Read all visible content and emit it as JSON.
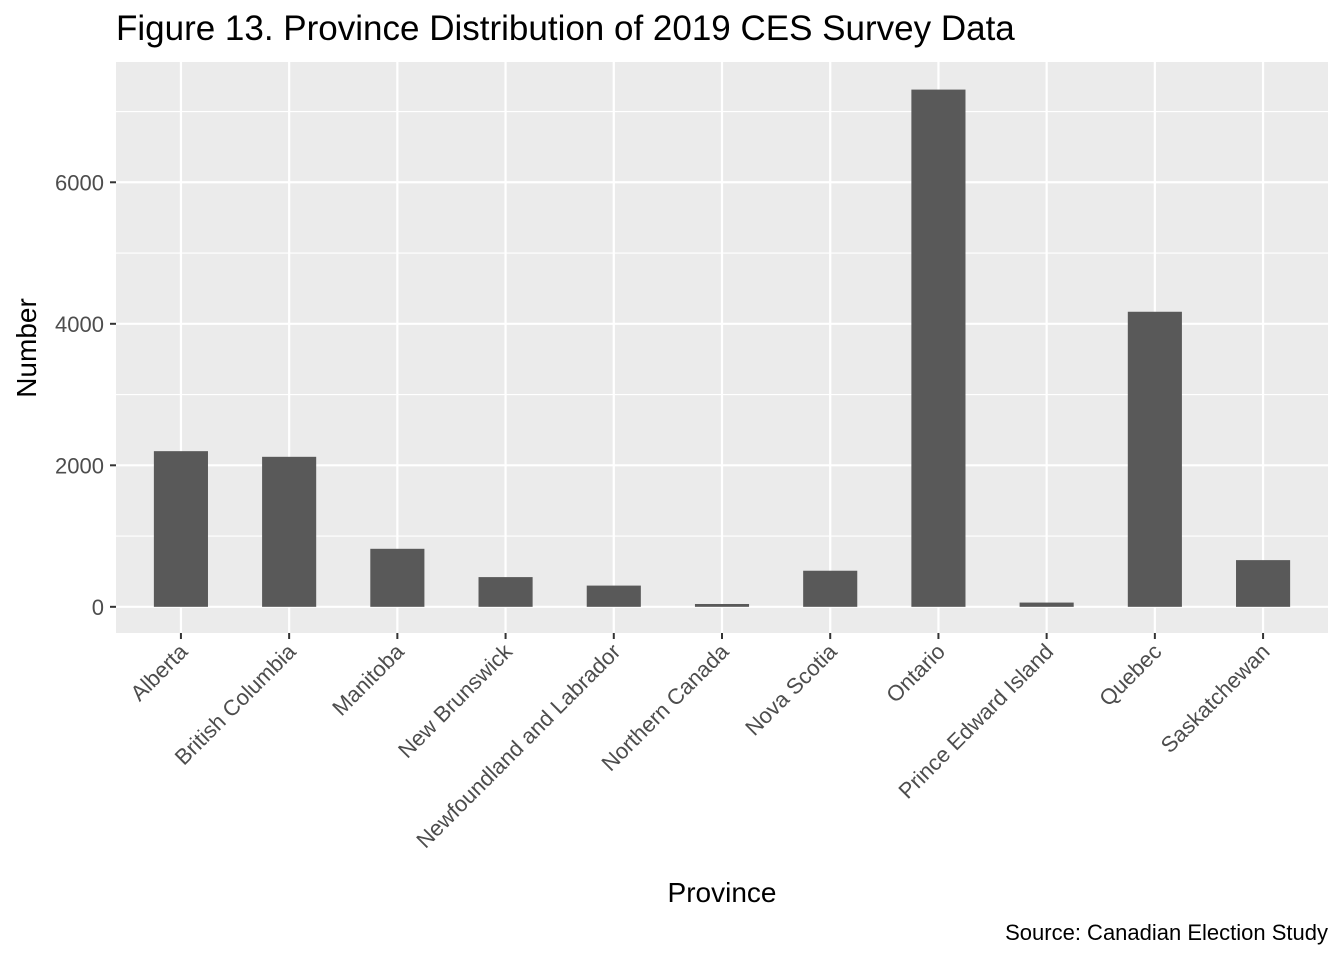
{
  "chart_data": {
    "type": "bar",
    "title": "Figure 13. Province Distribution of 2019 CES Survey Data",
    "xlabel": "Province",
    "ylabel": "Number",
    "caption": "Source: Canadian Election Study",
    "categories": [
      "Alberta",
      "British Columbia",
      "Manitoba",
      "New Brunswick",
      "Newfoundland and Labrador",
      "Northern Canada",
      "Nova Scotia",
      "Ontario",
      "Prince Edward Island",
      "Quebec",
      "Saskatchewan"
    ],
    "values": [
      2200,
      2120,
      820,
      420,
      300,
      40,
      510,
      7310,
      60,
      4170,
      660
    ],
    "ylim": [
      -370,
      7700
    ],
    "yticks": [
      0,
      2000,
      4000,
      6000
    ],
    "ytick_labels": [
      "0",
      "2000",
      "4000",
      "6000"
    ],
    "grid": true,
    "legend": "none",
    "colors": {
      "bar": "#595959",
      "panel": "#ebebeb",
      "grid": "#ffffff",
      "tick_text": "#4d4d4d",
      "axis_tick": "#333333"
    }
  }
}
